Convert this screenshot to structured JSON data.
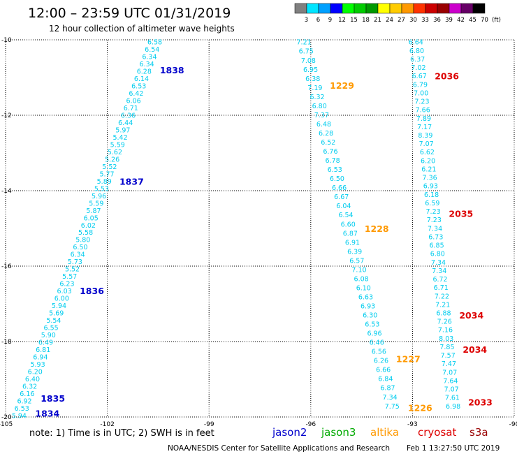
{
  "header": {
    "title": "12:00 – 23:59 UTC 01/31/2019",
    "subtitle": "12 hour collection of altimeter wave heights"
  },
  "colorbar": {
    "labels": [
      "3",
      "6",
      "9",
      "12",
      "15",
      "18",
      "21",
      "24",
      "27",
      "30",
      "33",
      "36",
      "39",
      "42",
      "45",
      "70",
      "(ft)"
    ],
    "colors": [
      "#808080",
      "#00e5ff",
      "#00a0ff",
      "#0000ff",
      "#00ff00",
      "#00cc00",
      "#009900",
      "#ffff00",
      "#ffcc00",
      "#ff9900",
      "#ff3300",
      "#cc0000",
      "#990000",
      "#cc00cc",
      "#660066",
      "#000000"
    ]
  },
  "footer": {
    "note": "note:  1) Time is in UTC;  2) SWH is in feet",
    "satellites": [
      {
        "name": "jason2",
        "color": "#0000cc"
      },
      {
        "name": "jason3",
        "color": "#00aa00"
      },
      {
        "name": "altika",
        "color": "#ff9900"
      },
      {
        "name": "cryosat",
        "color": "#dd0000"
      },
      {
        "name": "s3a",
        "color": "#990000"
      }
    ],
    "credit": "NOAA/NESDIS Center for Satellite Applications and Research",
    "timestamp": "Feb  1 13:27:50 UTC 2019"
  },
  "chart_data": {
    "type": "scatter",
    "title": "12:00 – 23:59 UTC 01/31/2019",
    "subtitle": "12 hour collection of altimeter wave heights",
    "xlim": [
      -105,
      -90
    ],
    "ylim": [
      -20,
      -10
    ],
    "x_ticks": [
      "-105",
      "-102",
      "-99",
      "-96",
      "-93",
      "-90"
    ],
    "y_ticks": [
      "-10",
      "-12",
      "-14",
      "-16",
      "-18",
      "-20"
    ],
    "grid": true,
    "value_color": "#00ccee",
    "tracks": [
      {
        "satellite": "jason2",
        "start": [
          -100.6,
          -10.05
        ],
        "end": [
          -104.6,
          -19.95
        ],
        "values": [
          "6.58",
          "6.54",
          "6.34",
          "6.34",
          "6.28",
          "6.14",
          "6.53",
          "6.42",
          "6.06",
          "6.71",
          "6.36",
          "6.44",
          "5.97",
          "5.42",
          "5.59",
          "5.62",
          "5.26",
          "5.52",
          "5.77",
          "5.89",
          "5.53",
          "5.96",
          "5.59",
          "5.87",
          "6.05",
          "6.02",
          "5.58",
          "5.80",
          "6.50",
          "6.34",
          "5.73",
          "5.52",
          "5.57",
          "6.23",
          "6.03",
          "6.00",
          "5.94",
          "5.69",
          "5.54",
          "6.55",
          "5.90",
          "6.49",
          "6.81",
          "6.94",
          "5.93",
          "6.20",
          "6.40",
          "6.32",
          "6.16",
          "6.92",
          "6.53",
          "5.94"
        ],
        "time_labels": [
          {
            "text": "1838",
            "lat": -10.8,
            "color": "#0000cc"
          },
          {
            "text": "1837",
            "lat": -13.75,
            "color": "#0000cc"
          },
          {
            "text": "1836",
            "lat": -16.65,
            "color": "#0000cc"
          },
          {
            "text": "1835",
            "lat": -19.5,
            "color": "#0000cc"
          },
          {
            "text": "1834",
            "lat": -19.9,
            "color": "#0000cc"
          }
        ]
      },
      {
        "satellite": "altika",
        "start": [
          -96.2,
          -10.05
        ],
        "end": [
          -93.6,
          -19.7
        ],
        "values": [
          "7.21",
          "6.75",
          "7.08",
          "6.95",
          "6.38",
          "7.19",
          "6.32",
          "6.80",
          "7.37",
          "6.48",
          "6.28",
          "6.52",
          "6.76",
          "6.78",
          "6.53",
          "6.50",
          "6.66",
          "6.67",
          "6.04",
          "6.54",
          "6.60",
          "6.87",
          "6.91",
          "6.39",
          "6.57",
          "7.10",
          "6.08",
          "6.10",
          "6.63",
          "6.93",
          "6.30",
          "6.53",
          "6.96",
          "6.46",
          "6.56",
          "6.26",
          "6.66",
          "6.84",
          "6.87",
          "7.34",
          "7.75"
        ],
        "time_labels": [
          {
            "text": "1229",
            "lat": -11.2,
            "color": "#ff9900"
          },
          {
            "text": "1228",
            "lat": -15.0,
            "color": "#ff9900"
          },
          {
            "text": "1227",
            "lat": -18.45,
            "color": "#ff9900"
          },
          {
            "text": "1226",
            "lat": -19.75,
            "color": "#ff9900"
          }
        ]
      },
      {
        "satellite": "cryosat",
        "start": [
          -92.9,
          -10.05
        ],
        "end": [
          -91.8,
          -19.7
        ],
        "values": [
          "6.64",
          "6.80",
          "6.37",
          "7.02",
          "6.67",
          "6.79",
          "7.00",
          "7.23",
          "7.66",
          "7.89",
          "7.17",
          "8.39",
          "7.07",
          "6.62",
          "6.20",
          "6.21",
          "7.36",
          "6.93",
          "6.18",
          "6.59",
          "7.23",
          "7.23",
          "7.34",
          "6.73",
          "6.85",
          "6.80",
          "7.34",
          "7.34",
          "6.72",
          "6.71",
          "7.22",
          "7.21",
          "6.88",
          "7.26",
          "7.16",
          "8.03",
          "7.85",
          "7.57",
          "7.47",
          "7.07",
          "7.64",
          "7.07",
          "7.61",
          "6.98"
        ],
        "time_labels": [
          {
            "text": "2036",
            "lat": -10.95,
            "color": "#dd0000"
          },
          {
            "text": "2035",
            "lat": -14.6,
            "color": "#dd0000"
          },
          {
            "text": "2034",
            "lat": -17.3,
            "color": "#dd0000"
          },
          {
            "text": "2034",
            "lat": -18.2,
            "color": "#dd0000"
          },
          {
            "text": "2033",
            "lat": -19.6,
            "color": "#dd0000"
          }
        ]
      }
    ]
  }
}
